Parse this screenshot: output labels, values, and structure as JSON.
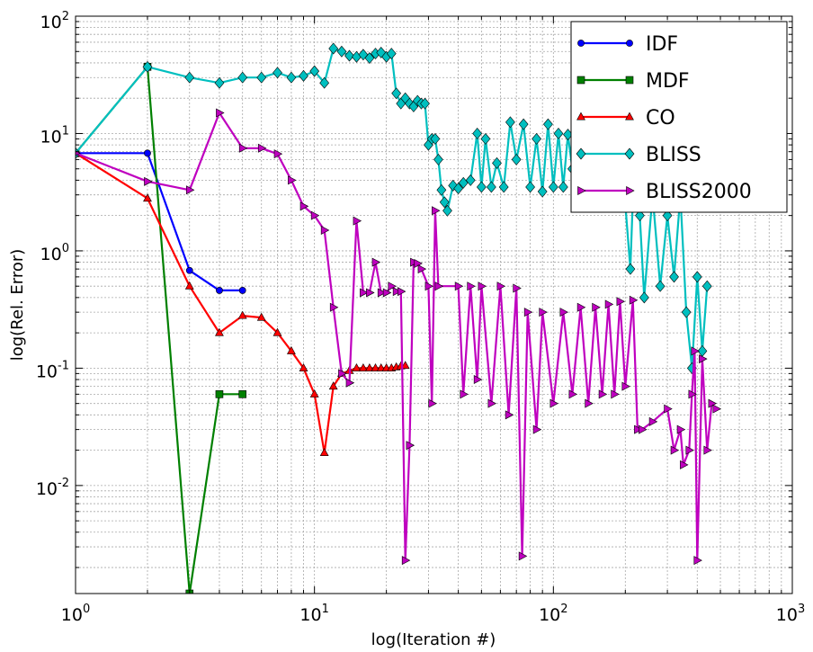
{
  "chart_data": {
    "type": "line",
    "x_scale": "log",
    "y_scale": "log",
    "xlabel": "log(Iteration #)",
    "ylabel": "log(Rel. Error)",
    "xlim": [
      1,
      1000
    ],
    "ylim": [
      0.0012,
      100
    ],
    "x_ticks": [
      {
        "base": "10",
        "exp": "0",
        "value": 1
      },
      {
        "base": "10",
        "exp": "1",
        "value": 10
      },
      {
        "base": "10",
        "exp": "2",
        "value": 100
      },
      {
        "base": "10",
        "exp": "3",
        "value": 1000
      }
    ],
    "y_ticks": [
      {
        "base": "10",
        "exp": "-2",
        "value": 0.01
      },
      {
        "base": "10",
        "exp": "-1",
        "value": 0.1
      },
      {
        "base": "10",
        "exp": "0",
        "value": 1
      },
      {
        "base": "10",
        "exp": "1",
        "value": 10
      },
      {
        "base": "10",
        "exp": "2",
        "value": 100
      }
    ],
    "grid": true,
    "legend_position": "top-right",
    "series": [
      {
        "name": "IDF",
        "color": "#0000ff",
        "marker": "circle",
        "points": [
          [
            1,
            6.8
          ],
          [
            2,
            6.8
          ],
          [
            3,
            0.68
          ],
          [
            4,
            0.46
          ],
          [
            5,
            0.46
          ]
        ]
      },
      {
        "name": "MDF",
        "color": "#008000",
        "marker": "square",
        "points": [
          [
            1,
            6.8
          ],
          [
            2,
            37
          ],
          [
            3,
            0.0012
          ],
          [
            4,
            0.06
          ],
          [
            5,
            0.06
          ]
        ]
      },
      {
        "name": "CO",
        "color": "#ff0000",
        "marker": "triangle-up",
        "points": [
          [
            1,
            6.8
          ],
          [
            2,
            2.8
          ],
          [
            3,
            0.5
          ],
          [
            4,
            0.2
          ],
          [
            5,
            0.28
          ],
          [
            6,
            0.27
          ],
          [
            7,
            0.2
          ],
          [
            8,
            0.14
          ],
          [
            9,
            0.1
          ],
          [
            10,
            0.06
          ],
          [
            11,
            0.019
          ],
          [
            12,
            0.07
          ],
          [
            13,
            0.09
          ],
          [
            14,
            0.095
          ],
          [
            15,
            0.1
          ],
          [
            16,
            0.1
          ],
          [
            17,
            0.1
          ],
          [
            18,
            0.1
          ],
          [
            19,
            0.1
          ],
          [
            20,
            0.1
          ],
          [
            21,
            0.1
          ],
          [
            22,
            0.102
          ],
          [
            23,
            0.104
          ],
          [
            24,
            0.105
          ]
        ]
      },
      {
        "name": "BLISS",
        "color": "#00bfbf",
        "marker": "diamond",
        "points": [
          [
            1,
            6.8
          ],
          [
            2,
            37
          ],
          [
            3,
            30
          ],
          [
            4,
            27
          ],
          [
            5,
            30
          ],
          [
            6,
            30
          ],
          [
            7,
            33
          ],
          [
            8,
            30
          ],
          [
            9,
            31
          ],
          [
            10,
            34
          ],
          [
            11,
            27
          ],
          [
            12,
            53
          ],
          [
            13,
            50
          ],
          [
            14,
            46
          ],
          [
            15,
            45
          ],
          [
            16,
            47
          ],
          [
            17,
            44
          ],
          [
            18,
            48
          ],
          [
            19,
            49
          ],
          [
            20,
            45
          ],
          [
            21,
            48
          ],
          [
            22,
            22
          ],
          [
            23,
            18
          ],
          [
            24,
            20
          ],
          [
            25,
            18
          ],
          [
            26,
            17
          ],
          [
            27,
            19
          ],
          [
            28,
            18
          ],
          [
            29,
            18
          ],
          [
            30,
            8
          ],
          [
            31,
            9
          ],
          [
            32,
            9
          ],
          [
            33,
            6
          ],
          [
            34,
            3.3
          ],
          [
            35,
            2.6
          ],
          [
            36,
            2.2
          ],
          [
            38,
            3.6
          ],
          [
            40,
            3.4
          ],
          [
            42,
            3.8
          ],
          [
            45,
            4
          ],
          [
            48,
            10
          ],
          [
            50,
            3.5
          ],
          [
            52,
            9
          ],
          [
            55,
            3.5
          ],
          [
            58,
            5.6
          ],
          [
            62,
            3.5
          ],
          [
            66,
            12.5
          ],
          [
            70,
            6
          ],
          [
            75,
            12
          ],
          [
            80,
            3.5
          ],
          [
            85,
            9
          ],
          [
            90,
            3.2
          ],
          [
            95,
            12
          ],
          [
            100,
            3.5
          ],
          [
            105,
            10
          ],
          [
            110,
            3.5
          ],
          [
            115,
            9.8
          ],
          [
            120,
            5
          ],
          [
            130,
            8
          ],
          [
            140,
            3.2
          ],
          [
            150,
            10
          ],
          [
            160,
            3.5
          ],
          [
            170,
            17
          ],
          [
            180,
            3.6
          ],
          [
            190,
            12
          ],
          [
            200,
            2.5
          ],
          [
            210,
            0.7
          ],
          [
            220,
            10
          ],
          [
            230,
            2
          ],
          [
            240,
            0.4
          ],
          [
            260,
            3
          ],
          [
            280,
            0.5
          ],
          [
            300,
            2
          ],
          [
            320,
            0.6
          ],
          [
            340,
            3
          ],
          [
            360,
            0.3
          ],
          [
            380,
            0.1
          ],
          [
            400,
            0.6
          ],
          [
            420,
            0.14
          ],
          [
            440,
            0.5
          ]
        ]
      },
      {
        "name": "BLISS2000",
        "color": "#bf00bf",
        "marker": "triangle-right",
        "points": [
          [
            1,
            6.8
          ],
          [
            2,
            3.9
          ],
          [
            3,
            3.3
          ],
          [
            4,
            15
          ],
          [
            5,
            7.5
          ],
          [
            6,
            7.5
          ],
          [
            7,
            6.7
          ],
          [
            8,
            4
          ],
          [
            9,
            2.4
          ],
          [
            10,
            2
          ],
          [
            11,
            1.5
          ],
          [
            12,
            0.33
          ],
          [
            13,
            0.09
          ],
          [
            14,
            0.075
          ],
          [
            15,
            1.8
          ],
          [
            16,
            0.44
          ],
          [
            17,
            0.44
          ],
          [
            18,
            0.8
          ],
          [
            19,
            0.44
          ],
          [
            20,
            0.44
          ],
          [
            21,
            0.5
          ],
          [
            22,
            0.45
          ],
          [
            23,
            0.45
          ],
          [
            24,
            0.0023
          ],
          [
            25,
            0.022
          ],
          [
            26,
            0.8
          ],
          [
            27,
            0.78
          ],
          [
            28,
            0.7
          ],
          [
            30,
            0.5
          ],
          [
            31,
            0.05
          ],
          [
            32,
            2.2
          ],
          [
            33,
            0.5
          ],
          [
            40,
            0.5
          ],
          [
            42,
            0.06
          ],
          [
            45,
            0.5
          ],
          [
            48,
            0.08
          ],
          [
            50,
            0.5
          ],
          [
            55,
            0.05
          ],
          [
            60,
            0.5
          ],
          [
            65,
            0.04
          ],
          [
            70,
            0.48
          ],
          [
            74,
            0.0025
          ],
          [
            78,
            0.3
          ],
          [
            85,
            0.03
          ],
          [
            90,
            0.3
          ],
          [
            100,
            0.05
          ],
          [
            110,
            0.3
          ],
          [
            120,
            0.06
          ],
          [
            130,
            0.33
          ],
          [
            140,
            0.05
          ],
          [
            150,
            0.33
          ],
          [
            160,
            0.06
          ],
          [
            170,
            0.35
          ],
          [
            180,
            0.06
          ],
          [
            190,
            0.37
          ],
          [
            200,
            0.07
          ],
          [
            215,
            0.38
          ],
          [
            225,
            0.03
          ],
          [
            235,
            0.03
          ],
          [
            260,
            0.035
          ],
          [
            300,
            0.045
          ],
          [
            320,
            0.02
          ],
          [
            340,
            0.03
          ],
          [
            350,
            0.015
          ],
          [
            370,
            0.02
          ],
          [
            380,
            0.06
          ],
          [
            390,
            0.14
          ],
          [
            400,
            0.0023
          ],
          [
            420,
            0.12
          ],
          [
            440,
            0.02
          ],
          [
            460,
            0.05
          ],
          [
            480,
            0.045
          ]
        ]
      }
    ]
  }
}
